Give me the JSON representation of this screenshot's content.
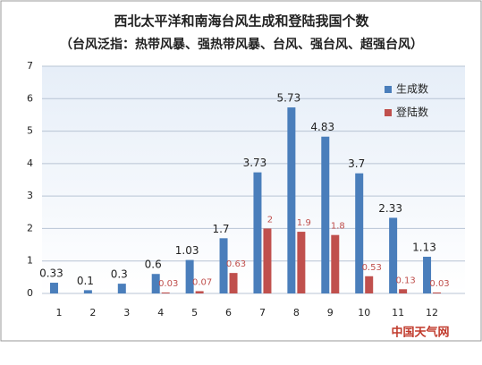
{
  "chart_data": {
    "type": "bar",
    "title": "西北太平洋和南海台风生成和登陆我国个数",
    "subtitle": "（台风泛指：热带风暴、强热带风暴、台风、强台风、超强台风）",
    "categories": [
      "1",
      "2",
      "3",
      "4",
      "5",
      "6",
      "7",
      "8",
      "9",
      "10",
      "11",
      "12"
    ],
    "series": [
      {
        "name": "生成数",
        "color": "#4a7ebb",
        "values": [
          0.33,
          0.1,
          0.3,
          0.6,
          1.03,
          1.7,
          3.73,
          5.73,
          4.83,
          3.7,
          2.33,
          1.13
        ]
      },
      {
        "name": "登陆数",
        "color": "#c0504d",
        "values": [
          null,
          null,
          null,
          0.03,
          0.07,
          0.63,
          2,
          1.9,
          1.8,
          0.53,
          0.13,
          0.03
        ]
      }
    ],
    "ylim": [
      0,
      7
    ],
    "yticks": [
      0,
      1,
      2,
      3,
      4,
      5,
      6,
      7
    ],
    "grid": true,
    "legend": "right",
    "logo": "中国天气网"
  }
}
